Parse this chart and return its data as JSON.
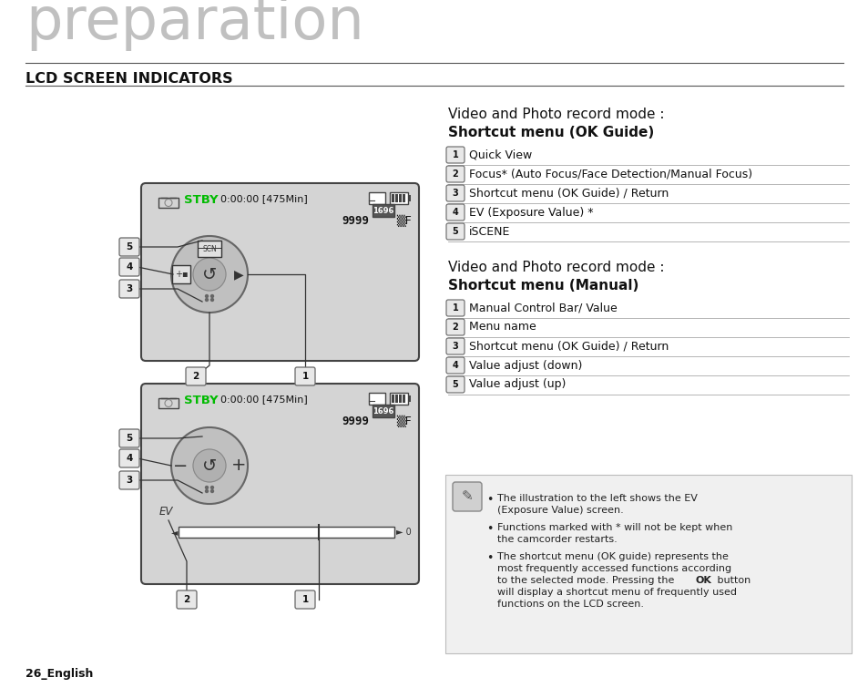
{
  "bg_color": "#ffffff",
  "title_text": "preparation",
  "section_title": "LCD SCREEN INDICATORS",
  "section1_heading_line1": "Video and Photo record mode :",
  "section1_heading_line2": "Shortcut menu (OK Guide)",
  "section1_items": [
    [
      "1",
      "Quick View"
    ],
    [
      "2",
      "Focus* (Auto Focus/Face Detection/Manual Focus)"
    ],
    [
      "3",
      "Shortcut menu (OK Guide) / Return"
    ],
    [
      "4",
      "EV (Exposure Value) *"
    ],
    [
      "5",
      "iSCENE"
    ]
  ],
  "section2_heading_line1": "Video and Photo record mode :",
  "section2_heading_line2": "Shortcut menu (Manual)",
  "section2_items": [
    [
      "1",
      "Manual Control Bar/ Value"
    ],
    [
      "2",
      "Menu name"
    ],
    [
      "3",
      "Shortcut menu (OK Guide) / Return"
    ],
    [
      "4",
      "Value adjust (down)"
    ],
    [
      "5",
      "Value adjust (up)"
    ]
  ],
  "note_line1": "The illustration to the left shows the EV",
  "note_line2": "(Exposure Value) screen.",
  "note_line3": "Functions marked with * will not be kept when",
  "note_line4": "the camcorder restarts.",
  "note_line5": "The shortcut menu (OK guide) represents the",
  "note_line6": "most frequently accessed functions according",
  "note_line7": "to the selected mode. Pressing the",
  "note_ok": "OK",
  "note_line7b": "button",
  "note_line8": "will display a shortcut menu of frequently used",
  "note_line9": "functions on the LCD screen.",
  "footer_text": "26_English",
  "lcd_bg": "#d4d4d4",
  "green_color": "#00bb00",
  "lcd_border": "#444444",
  "num_box_bg": "#e8e8e8",
  "num_box_border": "#666666",
  "line_color": "#888888",
  "note_bg": "#f0f0f0",
  "note_border": "#bbbbbb"
}
